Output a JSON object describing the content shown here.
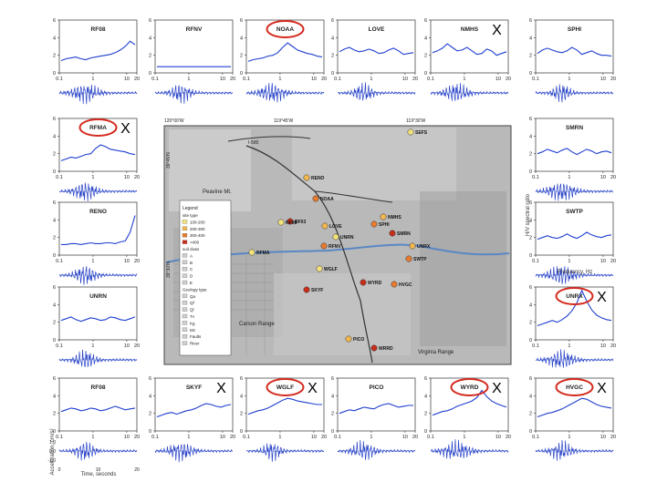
{
  "chart_data": {
    "type": "line",
    "description_labels": {
      "y_axis_spectrum": "H/V spectral ratio",
      "x_axis_spectrum": "Frequency, Hz",
      "y_axis_trace": "Acceleration, cm/s²",
      "x_axis_trace": "Time, seconds"
    },
    "spectrum_x_ticks": [
      "0.1",
      "1",
      "10",
      "20"
    ],
    "spectrum_y_ticks": [
      "0",
      "2",
      "4",
      "6"
    ],
    "trace_y_ticks": [
      "-1.0",
      "0.0",
      "1.0"
    ],
    "trace_x_ticks": [
      "0",
      "10",
      "20"
    ],
    "stations": [
      {
        "name": "RF08",
        "circled": false,
        "x_mark": false,
        "values": [
          1.4,
          1.6,
          1.7,
          1.8,
          1.6,
          1.5,
          1.7,
          1.8,
          1.9,
          2.0,
          2.1,
          2.3,
          2.6,
          3.0,
          3.6,
          3.2
        ]
      },
      {
        "name": "RFNV",
        "circled": false,
        "x_mark": false,
        "values": [
          0.7,
          0.7,
          0.7,
          0.7,
          0.7,
          0.7,
          0.7,
          0.7,
          0.7,
          0.7,
          0.7,
          0.7,
          0.7,
          0.7,
          0.7,
          0.7
        ]
      },
      {
        "name": "NOAA",
        "circled": true,
        "x_mark": false,
        "values": [
          1.3,
          1.5,
          1.6,
          1.7,
          1.9,
          2.0,
          2.3,
          2.9,
          3.4,
          3.0,
          2.6,
          2.4,
          2.2,
          2.1,
          1.9,
          1.8
        ]
      },
      {
        "name": "LOVE",
        "circled": false,
        "x_mark": false,
        "values": [
          2.4,
          2.7,
          2.9,
          2.6,
          2.4,
          2.5,
          2.7,
          2.5,
          2.2,
          2.3,
          2.6,
          2.8,
          2.5,
          2.1,
          2.2,
          2.3
        ]
      },
      {
        "name": "NMHS",
        "circled": false,
        "x_mark": true,
        "values": [
          2.3,
          2.5,
          2.8,
          3.3,
          2.9,
          2.5,
          2.6,
          2.9,
          2.5,
          2.1,
          2.2,
          2.7,
          2.5,
          2.0,
          2.2,
          2.4
        ]
      },
      {
        "name": "SPHI",
        "circled": false,
        "x_mark": false,
        "values": [
          2.2,
          2.6,
          2.8,
          2.6,
          2.4,
          2.3,
          2.5,
          2.9,
          2.6,
          2.1,
          2.3,
          2.5,
          2.2,
          2.0,
          2.0,
          1.9
        ]
      },
      {
        "name": "RFMA",
        "circled": true,
        "x_mark": true,
        "values": [
          1.2,
          1.4,
          1.6,
          1.5,
          1.7,
          1.9,
          2.0,
          2.6,
          3.0,
          2.8,
          2.5,
          2.4,
          2.3,
          2.2,
          2.0,
          1.9
        ]
      },
      {
        "name": "SMRN",
        "circled": false,
        "x_mark": false,
        "values": [
          2.0,
          2.2,
          2.5,
          2.3,
          2.1,
          2.4,
          2.6,
          2.2,
          1.9,
          2.2,
          2.5,
          2.3,
          2.0,
          2.2,
          2.3,
          2.1
        ]
      },
      {
        "name": "RENO",
        "circled": false,
        "x_mark": false,
        "values": [
          1.2,
          1.2,
          1.3,
          1.3,
          1.2,
          1.3,
          1.4,
          1.3,
          1.3,
          1.4,
          1.4,
          1.3,
          1.5,
          1.6,
          2.6,
          4.5
        ]
      },
      {
        "name": "SWTP",
        "circled": false,
        "x_mark": false,
        "values": [
          1.8,
          2.0,
          2.2,
          2.0,
          1.9,
          2.1,
          2.4,
          2.1,
          1.9,
          2.2,
          2.6,
          2.3,
          2.1,
          2.0,
          2.2,
          2.3
        ]
      },
      {
        "name": "UNRN",
        "circled": false,
        "x_mark": false,
        "values": [
          2.2,
          2.4,
          2.6,
          2.3,
          2.1,
          2.3,
          2.5,
          2.4,
          2.2,
          2.3,
          2.6,
          2.5,
          2.3,
          2.2,
          2.4,
          2.6
        ]
      },
      {
        "name": "UNRX",
        "circled": true,
        "x_mark": true,
        "values": [
          1.6,
          1.8,
          2.0,
          2.2,
          2.0,
          2.3,
          2.7,
          3.3,
          4.2,
          5.6,
          4.4,
          3.4,
          2.8,
          2.5,
          2.3,
          2.2
        ]
      },
      {
        "name": "RF08",
        "circled": false,
        "x_mark": false,
        "values": [
          2.2,
          2.4,
          2.6,
          2.5,
          2.3,
          2.4,
          2.6,
          2.5,
          2.3,
          2.4,
          2.6,
          2.8,
          2.6,
          2.4,
          2.5,
          2.6
        ]
      },
      {
        "name": "SKYF",
        "circled": false,
        "x_mark": true,
        "values": [
          1.6,
          1.8,
          2.0,
          2.1,
          1.9,
          2.1,
          2.3,
          2.4,
          2.6,
          2.9,
          3.1,
          3.0,
          2.8,
          2.7,
          2.9,
          3.0
        ]
      },
      {
        "name": "WGLF",
        "circled": true,
        "x_mark": true,
        "values": [
          1.9,
          2.1,
          2.3,
          2.4,
          2.6,
          2.9,
          3.2,
          3.5,
          3.7,
          3.6,
          3.4,
          3.3,
          3.2,
          3.1,
          3.0,
          3.0
        ]
      },
      {
        "name": "PICO",
        "circled": false,
        "x_mark": false,
        "values": [
          2.0,
          2.2,
          2.4,
          2.3,
          2.5,
          2.7,
          2.6,
          2.5,
          2.8,
          3.0,
          3.1,
          2.9,
          2.7,
          2.8,
          2.9,
          2.9
        ]
      },
      {
        "name": "WYRD",
        "circled": true,
        "x_mark": true,
        "values": [
          1.8,
          2.0,
          2.2,
          2.3,
          2.5,
          2.8,
          3.0,
          3.2,
          3.4,
          3.8,
          4.6,
          3.9,
          3.4,
          3.1,
          2.9,
          2.7
        ]
      },
      {
        "name": "HVGC",
        "circled": true,
        "x_mark": true,
        "values": [
          1.6,
          1.8,
          2.0,
          2.1,
          2.3,
          2.5,
          2.8,
          3.1,
          3.4,
          3.7,
          3.6,
          3.3,
          3.0,
          2.8,
          2.7,
          2.6
        ]
      }
    ],
    "map": {
      "top_labels": [
        "120°00'W",
        "119°45'W",
        "119°30'W"
      ],
      "left_labels": [
        "39°45'N",
        "39°30'N"
      ],
      "legend_title": "Legend",
      "legend_rows": [
        "site type",
        "100-200",
        "200-300",
        "300-400",
        ">400",
        "soil class",
        "A",
        "B",
        "C",
        "D",
        "E",
        "Geology type",
        "Qa",
        "Qf",
        "Ql",
        "Tv",
        "Kg",
        "Mz",
        "Faults",
        "River"
      ],
      "place_labels": [
        "Peavine Mt.",
        "Carson Range",
        "Virginia Range",
        "I-580"
      ],
      "stations_on_map": [
        "SEFS",
        "RENO",
        "NOAA",
        "RF03",
        "RFMA",
        "LOVE",
        "SPHI",
        "SMRN",
        "UNRN",
        "UNRX",
        "RFNV",
        "SKYF",
        "WGLF",
        "PICO",
        "HVGC",
        "WYRD",
        "RF08",
        "NMHS",
        "SWTP",
        "WRRD"
      ]
    }
  }
}
